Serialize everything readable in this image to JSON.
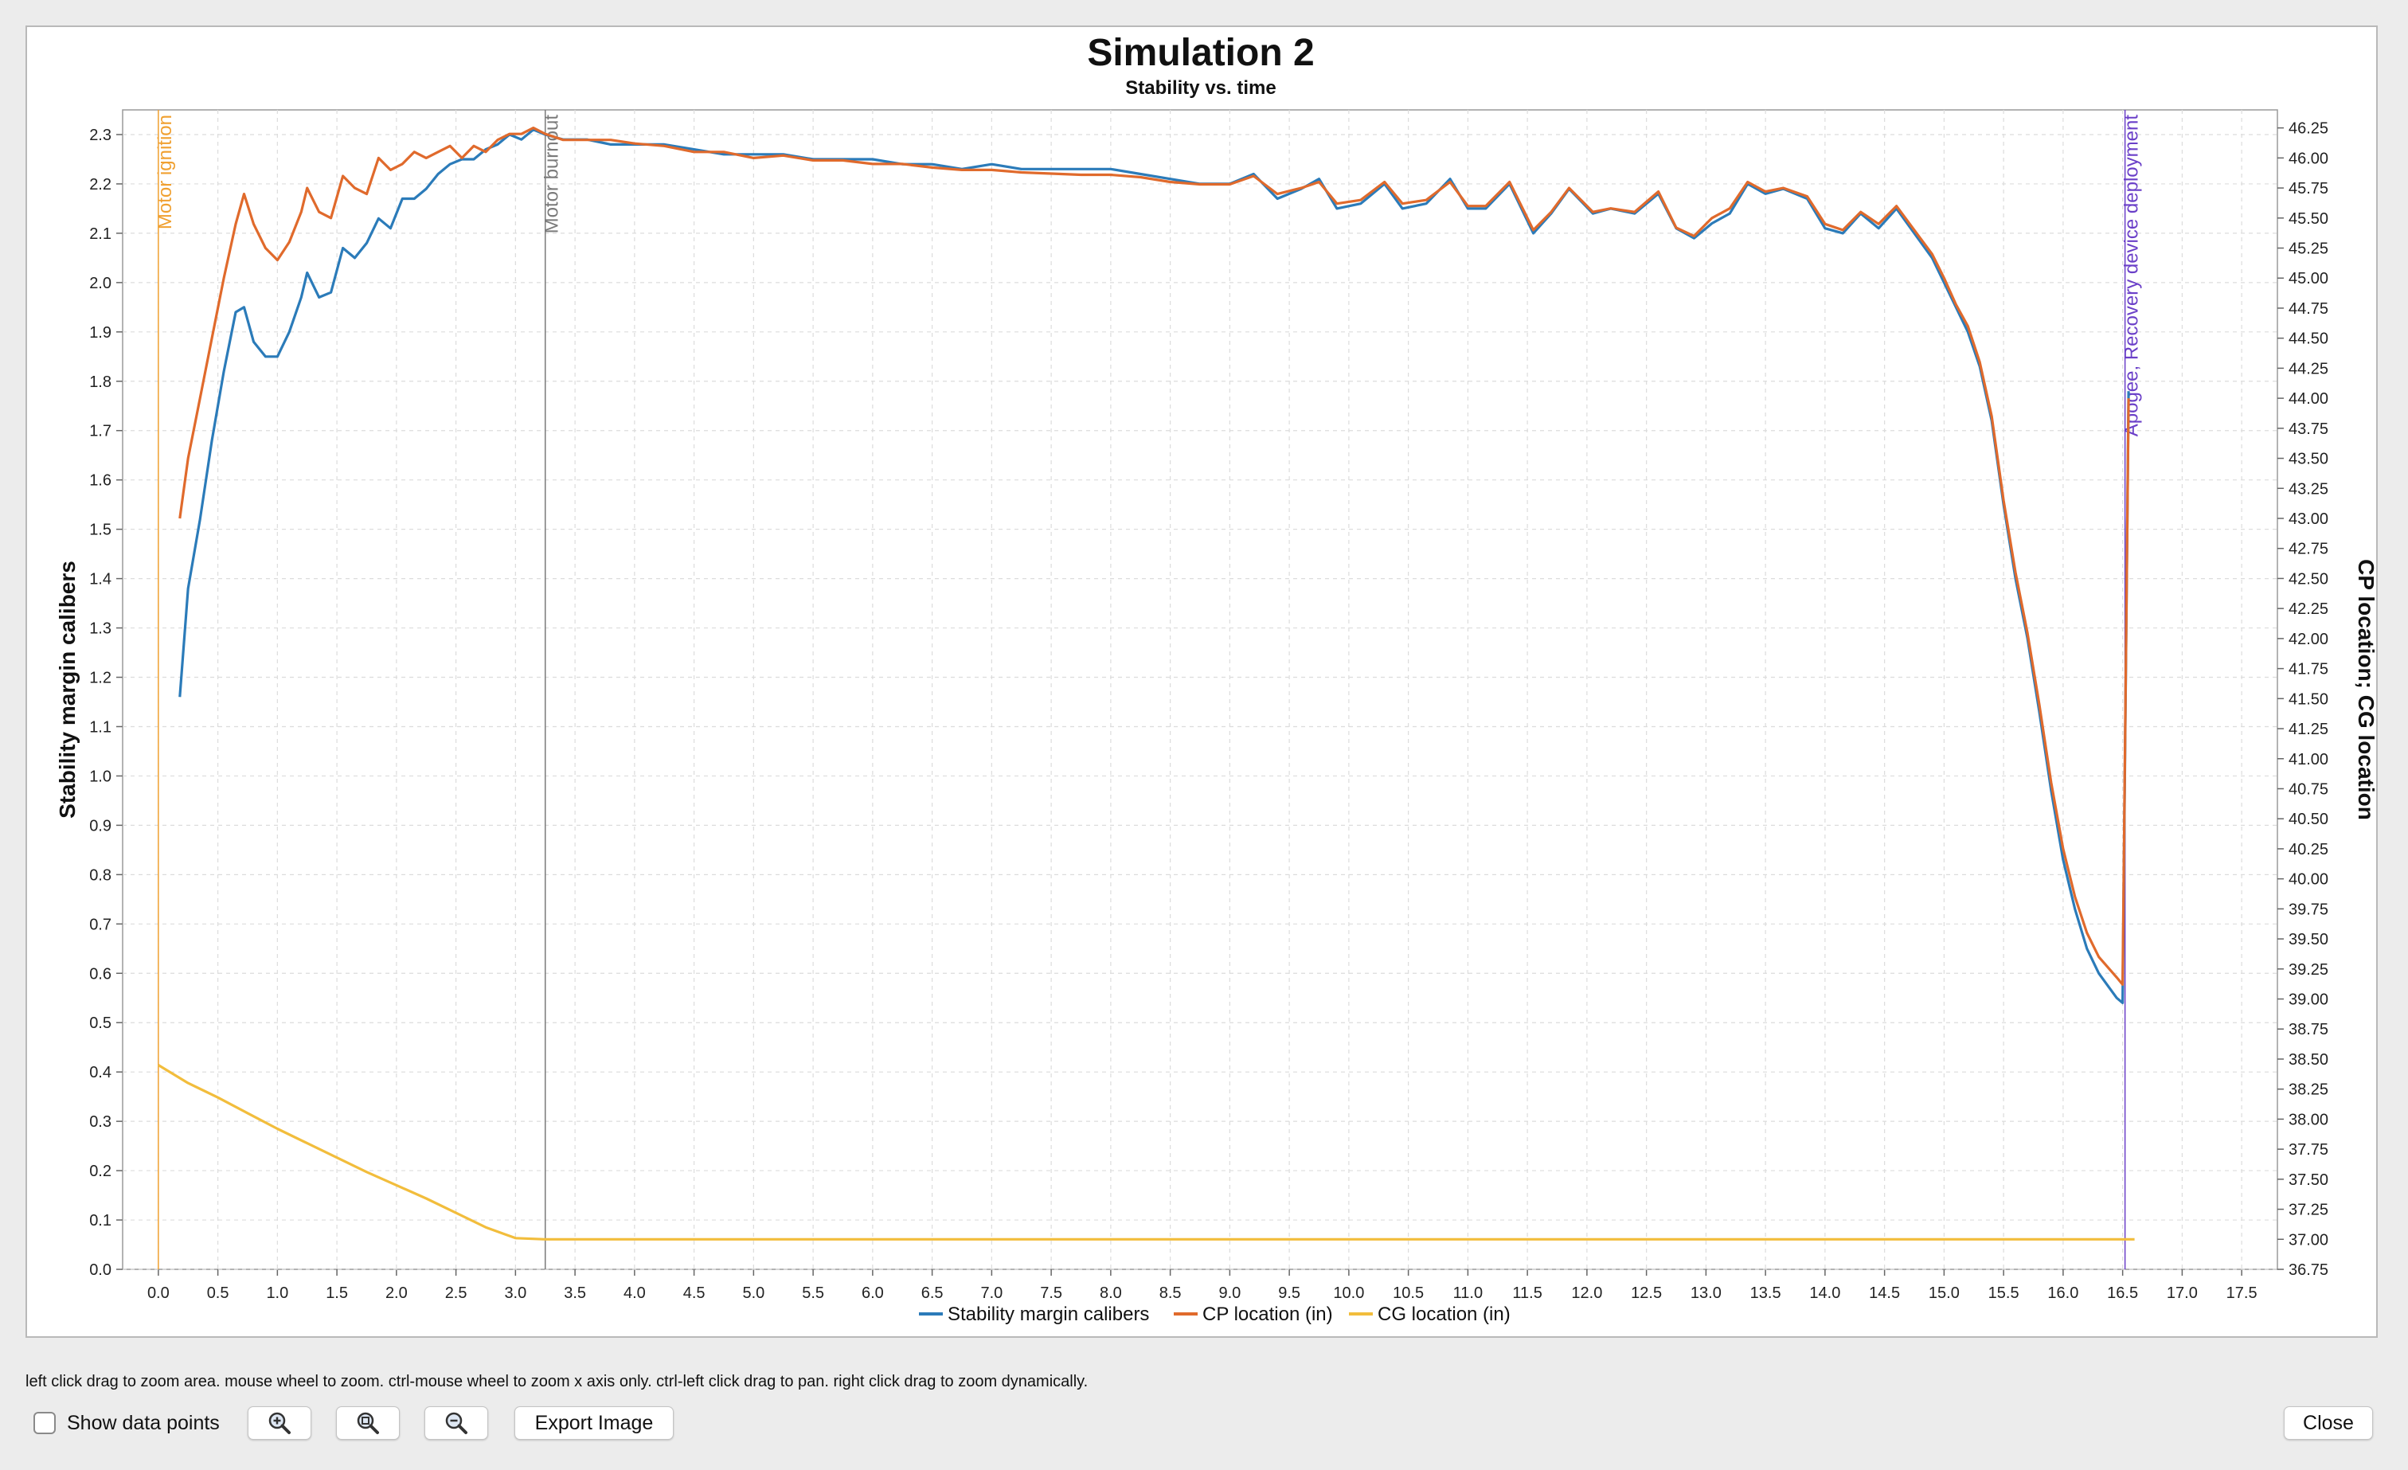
{
  "window": {
    "hint": "left click drag to zoom area. mouse wheel to zoom. ctrl-mouse wheel to zoom x axis only. ctrl-left click drag to pan.  right click drag to zoom dynamically.",
    "show_data_points_label": "Show data points",
    "show_data_points_checked": false,
    "zoom_in_icon": "zoom-in-icon",
    "zoom_fit_icon": "zoom-fit-icon",
    "zoom_out_icon": "zoom-out-icon",
    "export_label": "Export Image",
    "close_label": "Close"
  },
  "chart_data": {
    "type": "line",
    "title": "Simulation 2",
    "subtitle": "Stability vs. time",
    "xlabel": "",
    "ylabel": "Stability margin calibers",
    "y2label": "CP location; CG location",
    "xlim": [
      -0.3,
      17.8
    ],
    "ylim": [
      0.0,
      2.35
    ],
    "y2lim": [
      36.75,
      46.4
    ],
    "xticks": [
      "0.0",
      "0.5",
      "1.0",
      "1.5",
      "2.0",
      "2.5",
      "3.0",
      "3.5",
      "4.0",
      "4.5",
      "5.0",
      "5.5",
      "6.0",
      "6.5",
      "7.0",
      "7.5",
      "8.0",
      "8.5",
      "9.0",
      "9.5",
      "10.0",
      "10.5",
      "11.0",
      "11.5",
      "12.0",
      "12.5",
      "13.0",
      "13.5",
      "14.0",
      "14.5",
      "15.0",
      "15.5",
      "16.0",
      "16.5",
      "17.0",
      "17.5"
    ],
    "yticks": [
      "0.0",
      "0.1",
      "0.2",
      "0.3",
      "0.4",
      "0.5",
      "0.6",
      "0.7",
      "0.8",
      "0.9",
      "1.0",
      "1.1",
      "1.2",
      "1.3",
      "1.4",
      "1.5",
      "1.6",
      "1.7",
      "1.8",
      "1.9",
      "2.0",
      "2.1",
      "2.2",
      "2.3"
    ],
    "y2ticks": [
      "36.75",
      "37.00",
      "37.25",
      "37.50",
      "37.75",
      "38.00",
      "38.25",
      "38.50",
      "38.75",
      "39.00",
      "39.25",
      "39.50",
      "39.75",
      "40.00",
      "40.25",
      "40.50",
      "40.75",
      "41.00",
      "41.25",
      "41.50",
      "41.75",
      "42.00",
      "42.25",
      "42.50",
      "42.75",
      "43.00",
      "43.25",
      "43.50",
      "43.75",
      "44.00",
      "44.25",
      "44.50",
      "44.75",
      "45.00",
      "45.25",
      "45.50",
      "45.75",
      "46.00",
      "46.25"
    ],
    "grid": true,
    "legend_position": "bottom",
    "events": [
      {
        "x": 0.0,
        "label": "Motor ignition",
        "color": "#f0a030"
      },
      {
        "x": 3.25,
        "label": "Motor burnout",
        "color": "#7a7a7a"
      },
      {
        "x": 16.52,
        "label": "Apogee, Recovery device deployment",
        "color": "#6a3fc8"
      }
    ],
    "series": [
      {
        "name": "Stability margin calibers",
        "axis": "left",
        "color": "#2b7bb9",
        "points": [
          [
            0.18,
            1.16
          ],
          [
            0.25,
            1.38
          ],
          [
            0.35,
            1.52
          ],
          [
            0.45,
            1.68
          ],
          [
            0.55,
            1.82
          ],
          [
            0.65,
            1.94
          ],
          [
            0.72,
            1.95
          ],
          [
            0.8,
            1.88
          ],
          [
            0.9,
            1.85
          ],
          [
            1.0,
            1.85
          ],
          [
            1.1,
            1.9
          ],
          [
            1.2,
            1.97
          ],
          [
            1.25,
            2.02
          ],
          [
            1.35,
            1.97
          ],
          [
            1.45,
            1.98
          ],
          [
            1.55,
            2.07
          ],
          [
            1.65,
            2.05
          ],
          [
            1.75,
            2.08
          ],
          [
            1.85,
            2.13
          ],
          [
            1.95,
            2.11
          ],
          [
            2.05,
            2.17
          ],
          [
            2.15,
            2.17
          ],
          [
            2.25,
            2.19
          ],
          [
            2.35,
            2.22
          ],
          [
            2.45,
            2.24
          ],
          [
            2.55,
            2.25
          ],
          [
            2.65,
            2.25
          ],
          [
            2.75,
            2.27
          ],
          [
            2.85,
            2.28
          ],
          [
            2.95,
            2.3
          ],
          [
            3.05,
            2.29
          ],
          [
            3.15,
            2.31
          ],
          [
            3.25,
            2.3
          ],
          [
            3.4,
            2.29
          ],
          [
            3.6,
            2.29
          ],
          [
            3.8,
            2.28
          ],
          [
            4.0,
            2.28
          ],
          [
            4.25,
            2.28
          ],
          [
            4.5,
            2.27
          ],
          [
            4.75,
            2.26
          ],
          [
            5.0,
            2.26
          ],
          [
            5.25,
            2.26
          ],
          [
            5.5,
            2.25
          ],
          [
            5.75,
            2.25
          ],
          [
            6.0,
            2.25
          ],
          [
            6.25,
            2.24
          ],
          [
            6.5,
            2.24
          ],
          [
            6.75,
            2.23
          ],
          [
            7.0,
            2.24
          ],
          [
            7.25,
            2.23
          ],
          [
            7.5,
            2.23
          ],
          [
            7.75,
            2.23
          ],
          [
            8.0,
            2.23
          ],
          [
            8.25,
            2.22
          ],
          [
            8.5,
            2.21
          ],
          [
            8.75,
            2.2
          ],
          [
            9.0,
            2.2
          ],
          [
            9.2,
            2.22
          ],
          [
            9.4,
            2.17
          ],
          [
            9.6,
            2.19
          ],
          [
            9.75,
            2.21
          ],
          [
            9.9,
            2.15
          ],
          [
            10.1,
            2.16
          ],
          [
            10.3,
            2.2
          ],
          [
            10.45,
            2.15
          ],
          [
            10.65,
            2.16
          ],
          [
            10.85,
            2.21
          ],
          [
            11.0,
            2.15
          ],
          [
            11.15,
            2.15
          ],
          [
            11.35,
            2.2
          ],
          [
            11.55,
            2.1
          ],
          [
            11.7,
            2.14
          ],
          [
            11.85,
            2.19
          ],
          [
            12.05,
            2.14
          ],
          [
            12.2,
            2.15
          ],
          [
            12.4,
            2.14
          ],
          [
            12.6,
            2.18
          ],
          [
            12.75,
            2.11
          ],
          [
            12.9,
            2.09
          ],
          [
            13.05,
            2.12
          ],
          [
            13.2,
            2.14
          ],
          [
            13.35,
            2.2
          ],
          [
            13.5,
            2.18
          ],
          [
            13.65,
            2.19
          ],
          [
            13.85,
            2.17
          ],
          [
            14.0,
            2.11
          ],
          [
            14.15,
            2.1
          ],
          [
            14.3,
            2.14
          ],
          [
            14.45,
            2.11
          ],
          [
            14.6,
            2.15
          ],
          [
            14.75,
            2.1
          ],
          [
            14.9,
            2.05
          ],
          [
            15.0,
            2.0
          ],
          [
            15.1,
            1.95
          ],
          [
            15.2,
            1.9
          ],
          [
            15.3,
            1.83
          ],
          [
            15.4,
            1.72
          ],
          [
            15.5,
            1.55
          ],
          [
            15.6,
            1.4
          ],
          [
            15.7,
            1.28
          ],
          [
            15.8,
            1.13
          ],
          [
            15.9,
            0.97
          ],
          [
            16.0,
            0.83
          ],
          [
            16.1,
            0.73
          ],
          [
            16.2,
            0.65
          ],
          [
            16.3,
            0.6
          ],
          [
            16.45,
            0.55
          ],
          [
            16.5,
            0.54
          ],
          [
            16.55,
            1.78
          ]
        ]
      },
      {
        "name": "CP location (in)",
        "axis": "right",
        "color": "#e06a2c",
        "points": [
          [
            0.18,
            43.0
          ],
          [
            0.25,
            43.5
          ],
          [
            0.35,
            44.0
          ],
          [
            0.45,
            44.5
          ],
          [
            0.55,
            45.0
          ],
          [
            0.65,
            45.45
          ],
          [
            0.72,
            45.7
          ],
          [
            0.8,
            45.45
          ],
          [
            0.9,
            45.25
          ],
          [
            1.0,
            45.15
          ],
          [
            1.1,
            45.3
          ],
          [
            1.2,
            45.55
          ],
          [
            1.25,
            45.75
          ],
          [
            1.35,
            45.55
          ],
          [
            1.45,
            45.5
          ],
          [
            1.55,
            45.85
          ],
          [
            1.65,
            45.75
          ],
          [
            1.75,
            45.7
          ],
          [
            1.85,
            46.0
          ],
          [
            1.95,
            45.9
          ],
          [
            2.05,
            45.95
          ],
          [
            2.15,
            46.05
          ],
          [
            2.25,
            46.0
          ],
          [
            2.35,
            46.05
          ],
          [
            2.45,
            46.1
          ],
          [
            2.55,
            46.0
          ],
          [
            2.65,
            46.1
          ],
          [
            2.75,
            46.05
          ],
          [
            2.85,
            46.15
          ],
          [
            2.95,
            46.2
          ],
          [
            3.05,
            46.2
          ],
          [
            3.15,
            46.25
          ],
          [
            3.25,
            46.2
          ],
          [
            3.4,
            46.15
          ],
          [
            3.6,
            46.15
          ],
          [
            3.8,
            46.15
          ],
          [
            4.0,
            46.12
          ],
          [
            4.25,
            46.1
          ],
          [
            4.5,
            46.05
          ],
          [
            4.75,
            46.05
          ],
          [
            5.0,
            46.0
          ],
          [
            5.25,
            46.02
          ],
          [
            5.5,
            45.98
          ],
          [
            5.75,
            45.98
          ],
          [
            6.0,
            45.95
          ],
          [
            6.25,
            45.95
          ],
          [
            6.5,
            45.92
          ],
          [
            6.75,
            45.9
          ],
          [
            7.0,
            45.9
          ],
          [
            7.25,
            45.88
          ],
          [
            7.5,
            45.87
          ],
          [
            7.75,
            45.86
          ],
          [
            8.0,
            45.86
          ],
          [
            8.25,
            45.84
          ],
          [
            8.5,
            45.8
          ],
          [
            8.75,
            45.78
          ],
          [
            9.0,
            45.78
          ],
          [
            9.2,
            45.85
          ],
          [
            9.4,
            45.7
          ],
          [
            9.6,
            45.75
          ],
          [
            9.75,
            45.8
          ],
          [
            9.9,
            45.62
          ],
          [
            10.1,
            45.65
          ],
          [
            10.3,
            45.8
          ],
          [
            10.45,
            45.62
          ],
          [
            10.65,
            45.65
          ],
          [
            10.85,
            45.8
          ],
          [
            11.0,
            45.6
          ],
          [
            11.15,
            45.6
          ],
          [
            11.35,
            45.8
          ],
          [
            11.55,
            45.4
          ],
          [
            11.7,
            45.55
          ],
          [
            11.85,
            45.75
          ],
          [
            12.05,
            45.55
          ],
          [
            12.2,
            45.58
          ],
          [
            12.4,
            45.55
          ],
          [
            12.6,
            45.72
          ],
          [
            12.75,
            45.42
          ],
          [
            12.9,
            45.35
          ],
          [
            13.05,
            45.5
          ],
          [
            13.2,
            45.58
          ],
          [
            13.35,
            45.8
          ],
          [
            13.5,
            45.72
          ],
          [
            13.65,
            45.75
          ],
          [
            13.85,
            45.68
          ],
          [
            14.0,
            45.45
          ],
          [
            14.15,
            45.4
          ],
          [
            14.3,
            45.55
          ],
          [
            14.45,
            45.45
          ],
          [
            14.6,
            45.6
          ],
          [
            14.75,
            45.4
          ],
          [
            14.9,
            45.2
          ],
          [
            15.0,
            45.0
          ],
          [
            15.1,
            44.78
          ],
          [
            15.2,
            44.6
          ],
          [
            15.3,
            44.3
          ],
          [
            15.4,
            43.85
          ],
          [
            15.5,
            43.15
          ],
          [
            15.6,
            42.55
          ],
          [
            15.7,
            42.05
          ],
          [
            15.8,
            41.45
          ],
          [
            15.9,
            40.8
          ],
          [
            16.0,
            40.25
          ],
          [
            16.1,
            39.85
          ],
          [
            16.2,
            39.55
          ],
          [
            16.3,
            39.35
          ],
          [
            16.45,
            39.18
          ],
          [
            16.5,
            39.12
          ],
          [
            16.55,
            44.0
          ]
        ]
      },
      {
        "name": "CG location (in)",
        "axis": "right",
        "color": "#f2bd3c",
        "points": [
          [
            0.0,
            38.45
          ],
          [
            0.25,
            38.3
          ],
          [
            0.5,
            38.18
          ],
          [
            0.75,
            38.05
          ],
          [
            1.0,
            37.92
          ],
          [
            1.25,
            37.8
          ],
          [
            1.5,
            37.68
          ],
          [
            1.75,
            37.56
          ],
          [
            2.0,
            37.45
          ],
          [
            2.25,
            37.34
          ],
          [
            2.5,
            37.22
          ],
          [
            2.75,
            37.1
          ],
          [
            3.0,
            37.01
          ],
          [
            3.25,
            37.0
          ],
          [
            4.0,
            37.0
          ],
          [
            6.0,
            37.0
          ],
          [
            8.0,
            37.0
          ],
          [
            10.0,
            37.0
          ],
          [
            12.0,
            37.0
          ],
          [
            14.0,
            37.0
          ],
          [
            16.0,
            37.0
          ],
          [
            16.6,
            37.0
          ]
        ]
      }
    ]
  }
}
